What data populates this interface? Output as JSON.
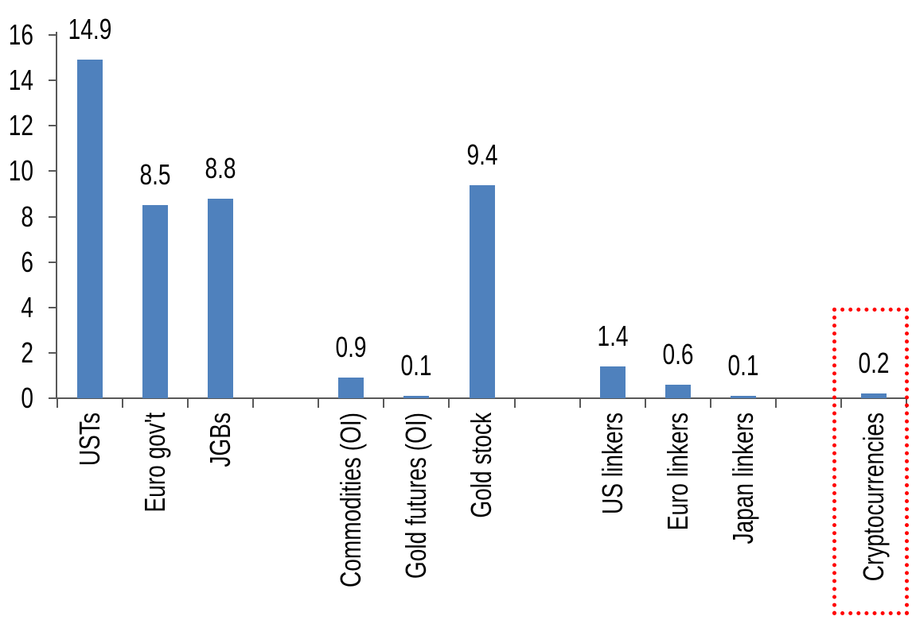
{
  "chart_data": {
    "type": "bar",
    "title": "",
    "xlabel": "",
    "ylabel": "",
    "ylim": [
      0,
      16
    ],
    "ytick_step": 2,
    "yticks": [
      "0",
      "2",
      "4",
      "6",
      "8",
      "10",
      "12",
      "14",
      "16"
    ],
    "grid": false,
    "legend_position": "none",
    "bar_color": "#4f81bd",
    "axis_color": "#595959",
    "label_color": "#000000",
    "highlight_box_color": "#ff0000",
    "bars": [
      {
        "label": "USTs",
        "value": 14.9,
        "display": "14.9"
      },
      {
        "label": "Euro gov't",
        "value": 8.5,
        "display": "8.5"
      },
      {
        "label": "JGBs",
        "value": 8.8,
        "display": "8.8"
      },
      {
        "label": "",
        "value": null,
        "display": ""
      },
      {
        "label": "Commodities (OI)",
        "value": 0.9,
        "display": "0.9"
      },
      {
        "label": "Gold futures (OI)",
        "value": 0.1,
        "display": "0.1"
      },
      {
        "label": "Gold stock",
        "value": 9.4,
        "display": "9.4"
      },
      {
        "label": "",
        "value": null,
        "display": ""
      },
      {
        "label": "US linkers",
        "value": 1.4,
        "display": "1.4"
      },
      {
        "label": "Euro linkers",
        "value": 0.6,
        "display": "0.6"
      },
      {
        "label": "Japan linkers",
        "value": 0.1,
        "display": "0.1"
      },
      {
        "label": "",
        "value": null,
        "display": ""
      },
      {
        "label": "Cryptocurrencies",
        "value": 0.2,
        "display": "0.2",
        "highlighted": true
      }
    ]
  }
}
